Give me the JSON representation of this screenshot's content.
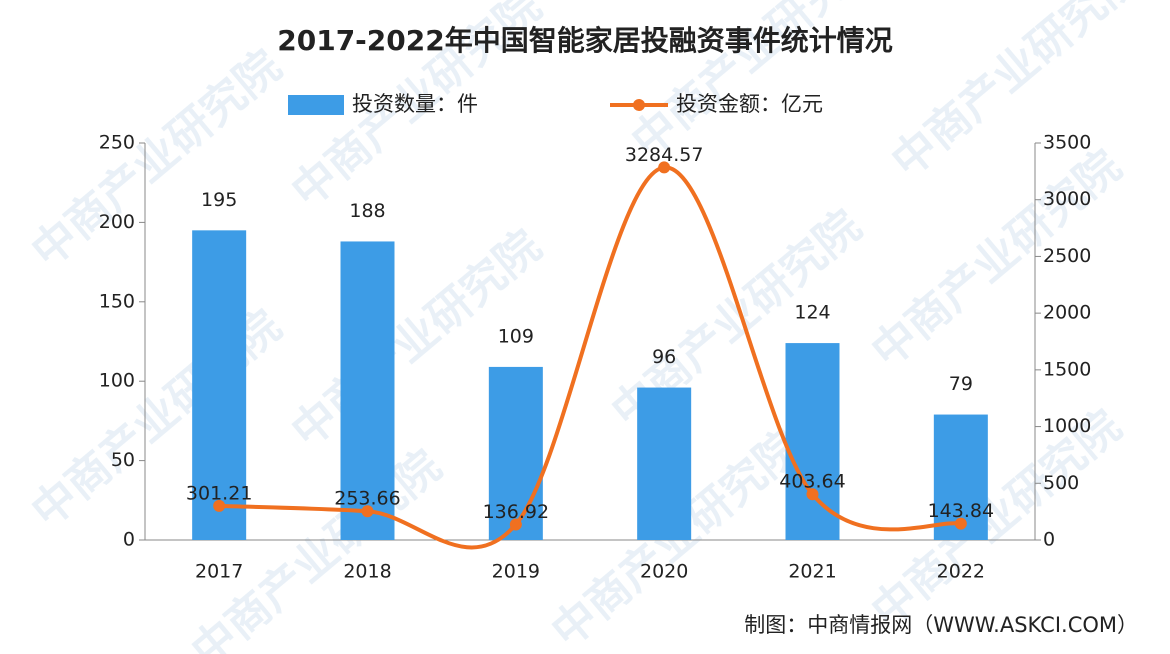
{
  "chart_data": {
    "type": "bar-line",
    "title": "2017-2022年中国智能家居投融资事件统计情况",
    "categories": [
      "2017",
      "2018",
      "2019",
      "2020",
      "2021",
      "2022"
    ],
    "series": [
      {
        "name": "投资数量：件",
        "type": "bar",
        "color": "#3d9ce6",
        "values": [
          195,
          188,
          109,
          96,
          124,
          79
        ]
      },
      {
        "name": "投资金额：亿元",
        "type": "line",
        "axis": "y2",
        "color": "#f07020",
        "values": [
          301.21,
          253.66,
          136.92,
          3284.57,
          403.64,
          143.84
        ]
      }
    ],
    "ylim": [
      0,
      250
    ],
    "yticks": [
      0,
      50,
      100,
      150,
      200,
      250
    ],
    "y2lim": [
      0,
      3500
    ],
    "y2ticks": [
      0,
      500,
      1000,
      1500,
      2000,
      2500,
      3000,
      3500
    ],
    "legend": "top",
    "source": "制图：中商情报网（WWW.ASKCI.COM）",
    "watermark": "中商产业研究院"
  }
}
